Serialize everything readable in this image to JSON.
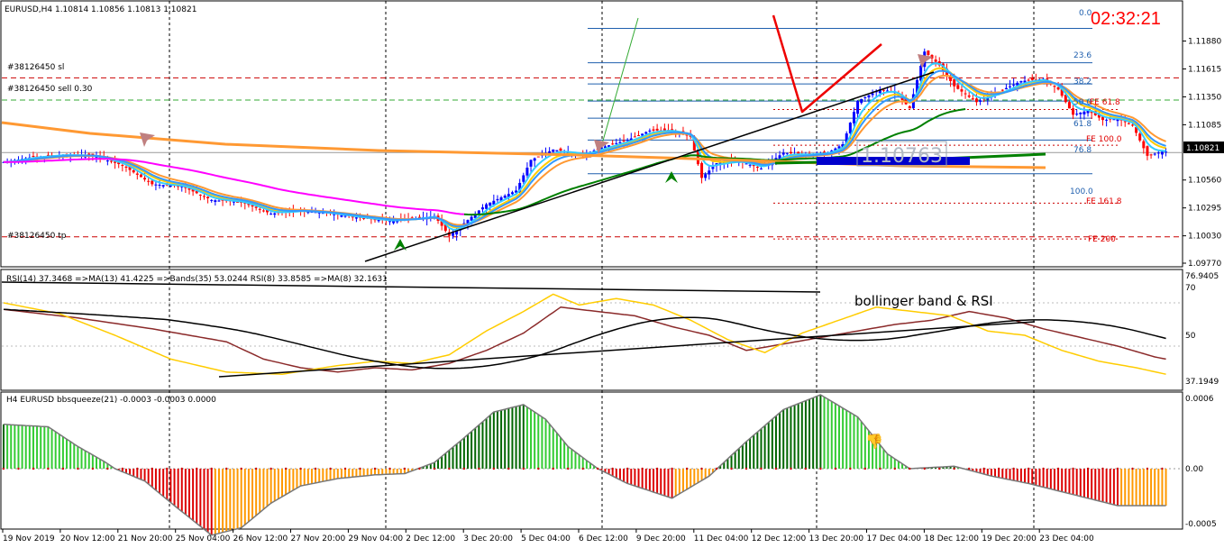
{
  "window": {
    "symbol_header": "EURUSD,H4  1.10814 1.10856 1.10813 1.10821",
    "countdown": "02:32:21",
    "current_price": "1.10821",
    "price_box": "1.10763"
  },
  "order_lines": {
    "sl": "#38126450 sl",
    "sell": "#38126450 sell 0.30",
    "tp": "#38126450 tp"
  },
  "fib_labels": [
    "0.0",
    "23.6",
    "38.2",
    "50.0",
    "61.8",
    "76.8",
    "100.0"
  ],
  "fe_labels": [
    "FE 61.8",
    "FE 100.0",
    "FE 161.8",
    "FE  200"
  ],
  "rsi_panel": {
    "header": "RSI(14) 37.3468  =>MA(13) 41.4225  =>Bands(35) 53.0244  RSI(8) 33.8585  =>MA(8) 32.1631",
    "annotation": "bollinger band & RSI"
  },
  "squeeze_panel": {
    "header": "H4 EURUSD bbsqueeze(21) -0.0003 -0.0003 0.0000"
  },
  "colors": {
    "bull_candle": "#0000ff",
    "bear_candle": "#ff0000",
    "ma_magenta": "#ff00ff",
    "ma_orange": "#ff9933",
    "ma_yellow": "#ffcc00",
    "ma_lightblue": "#33ccff",
    "ma_blue": "#3399ff",
    "ma_green": "#008000",
    "trendline": "#000000",
    "hist_up": "#33cc33",
    "hist_down": "#dd0000",
    "hist_weak_down": "#ff9900",
    "fib_line": "#1f5fae",
    "fe_line": "#cc0000",
    "order_sl": "#cc0000",
    "order_sell": "#33aa33",
    "countdown": "#ff0000"
  },
  "chart_data": [
    {
      "type": "candlestick",
      "title": "EURUSD,H4",
      "ylabel": "",
      "ylim": [
        1.0977,
        1.1215
      ],
      "y_ticks": [
        "1.11880",
        "1.11615",
        "1.11350",
        "1.11085",
        "1.10821",
        "1.10560",
        "1.10295",
        "1.10030",
        "1.09770"
      ],
      "x_ticks": [
        "19 Nov 2019",
        "20 Nov 12:00",
        "21 Nov 20:00",
        "25 Nov 04:00",
        "26 Nov 12:00",
        "27 Nov 20:00",
        "29 Nov 04:00",
        "2 Dec 12:00",
        "3 Dec 20:00",
        "5 Dec 04:00",
        "6 Dec 12:00",
        "9 Dec 20:00",
        "11 Dec 04:00",
        "12 Dec 12:00",
        "13 Dec 20:00",
        "17 Dec 04:00",
        "18 Dec 12:00",
        "19 Dec 20:00",
        "23 Dec 04:00"
      ],
      "close_anchors": [
        [
          0,
          1.1073
        ],
        [
          8,
          1.1078
        ],
        [
          16,
          1.108
        ],
        [
          24,
          1.1079
        ],
        [
          32,
          1.107
        ],
        [
          40,
          1.1052
        ],
        [
          48,
          1.105
        ],
        [
          56,
          1.1037
        ],
        [
          64,
          1.1035
        ],
        [
          72,
          1.1024
        ],
        [
          80,
          1.1027
        ],
        [
          88,
          1.1024
        ],
        [
          96,
          1.102
        ],
        [
          104,
          1.1017
        ],
        [
          112,
          1.102
        ],
        [
          116,
          1.1022
        ],
        [
          120,
          1.1003
        ],
        [
          124,
          1.1015
        ],
        [
          130,
          1.1033
        ],
        [
          138,
          1.1046
        ],
        [
          142,
          1.1075
        ],
        [
          148,
          1.1085
        ],
        [
          156,
          1.108
        ],
        [
          162,
          1.1088
        ],
        [
          168,
          1.1094
        ],
        [
          174,
          1.1103
        ],
        [
          180,
          1.1103
        ],
        [
          185,
          1.1097
        ],
        [
          188,
          1.1058
        ],
        [
          192,
          1.1072
        ],
        [
          198,
          1.1074
        ],
        [
          204,
          1.1067
        ],
        [
          210,
          1.1082
        ],
        [
          216,
          1.108
        ],
        [
          222,
          1.1082
        ],
        [
          226,
          1.109
        ],
        [
          230,
          1.1131
        ],
        [
          236,
          1.1142
        ],
        [
          240,
          1.114
        ],
        [
          244,
          1.1124
        ],
        [
          248,
          1.1178
        ],
        [
          252,
          1.1165
        ],
        [
          256,
          1.1145
        ],
        [
          262,
          1.113
        ],
        [
          268,
          1.114
        ],
        [
          274,
          1.115
        ],
        [
          280,
          1.1152
        ],
        [
          284,
          1.1142
        ],
        [
          288,
          1.1118
        ],
        [
          292,
          1.1122
        ],
        [
          296,
          1.1113
        ],
        [
          300,
          1.1114
        ],
        [
          304,
          1.1108
        ],
        [
          308,
          1.1079
        ],
        [
          312,
          1.1083
        ]
      ],
      "fibonacci_levels": [
        0.0,
        23.6,
        38.2,
        50.0,
        61.8,
        76.8,
        100.0
      ],
      "fib_high": 1.12,
      "fib_low": 1.1062,
      "fe_levels": [
        {
          "label": "FE 61.8",
          "value": 1.1123
        },
        {
          "label": "FE 100.0",
          "value": 1.1089
        },
        {
          "label": "FE 161.8",
          "value": 1.1034
        },
        {
          "label": "FE  200",
          "value": 1.1
        }
      ],
      "order_levels": {
        "sl": 1.1153,
        "sell": 1.1132,
        "tp": 1.1002
      },
      "current_price": 1.10821
    },
    {
      "type": "line",
      "title": "RSI(14) 37.3468",
      "ylim": [
        30,
        80
      ],
      "y_ticks": [
        "76.9405",
        "70",
        "50",
        "37.1949"
      ],
      "series": [
        {
          "name": "RSI(14)",
          "anchors": [
            [
              0,
              67
            ],
            [
              20,
              63
            ],
            [
              40,
              58
            ],
            [
              60,
              52
            ],
            [
              70,
              44
            ],
            [
              80,
              40
            ],
            [
              90,
              38
            ],
            [
              100,
              40
            ],
            [
              110,
              39
            ],
            [
              120,
              42
            ],
            [
              130,
              48
            ],
            [
              140,
              56
            ],
            [
              150,
              68
            ],
            [
              160,
              66
            ],
            [
              170,
              64
            ],
            [
              180,
              59
            ],
            [
              190,
              55
            ],
            [
              200,
              48
            ],
            [
              210,
              51
            ],
            [
              220,
              54
            ],
            [
              230,
              57
            ],
            [
              240,
              60
            ],
            [
              250,
              62
            ],
            [
              260,
              66
            ],
            [
              270,
              63
            ],
            [
              280,
              58
            ],
            [
              290,
              54
            ],
            [
              300,
              50
            ],
            [
              310,
              45
            ],
            [
              313,
              44
            ]
          ]
        },
        {
          "name": "RSI(8)",
          "anchors": [
            [
              0,
              70
            ],
            [
              15,
              65
            ],
            [
              30,
              55
            ],
            [
              45,
              44
            ],
            [
              60,
              38
            ],
            [
              75,
              37
            ],
            [
              90,
              41
            ],
            [
              100,
              43
            ],
            [
              110,
              42
            ],
            [
              120,
              46
            ],
            [
              130,
              57
            ],
            [
              140,
              66
            ],
            [
              148,
              74
            ],
            [
              155,
              69
            ],
            [
              165,
              72
            ],
            [
              175,
              69
            ],
            [
              185,
              62
            ],
            [
              195,
              53
            ],
            [
              205,
              47
            ],
            [
              215,
              56
            ],
            [
              225,
              62
            ],
            [
              235,
              68
            ],
            [
              245,
              66
            ],
            [
              255,
              64
            ],
            [
              265,
              57
            ],
            [
              275,
              55
            ],
            [
              285,
              48
            ],
            [
              295,
              43
            ],
            [
              305,
              40
            ],
            [
              313,
              37
            ]
          ]
        }
      ]
    },
    {
      "type": "bar",
      "title": "bbsqueeze(21)",
      "ylim": [
        -0.0006,
        0.0006
      ],
      "y_ticks": [
        "0.0006",
        "0.00",
        "-0.0005"
      ],
      "anchors": [
        [
          0,
          0.00036
        ],
        [
          12,
          0.00034
        ],
        [
          20,
          0.00018
        ],
        [
          27,
          6e-05
        ],
        [
          30,
          0.0
        ],
        [
          38,
          -0.0001
        ],
        [
          46,
          -0.0003
        ],
        [
          56,
          -0.00054
        ],
        [
          64,
          -0.00048
        ],
        [
          72,
          -0.00028
        ],
        [
          80,
          -0.00014
        ],
        [
          90,
          -8e-05
        ],
        [
          100,
          -5e-05
        ],
        [
          108,
          -4e-05
        ],
        [
          116,
          5e-05
        ],
        [
          124,
          0.00025
        ],
        [
          132,
          0.00046
        ],
        [
          140,
          0.00052
        ],
        [
          146,
          0.0004
        ],
        [
          152,
          0.00018
        ],
        [
          160,
          0.0
        ],
        [
          168,
          -0.00012
        ],
        [
          180,
          -0.00024
        ],
        [
          190,
          -6e-05
        ],
        [
          200,
          0.00022
        ],
        [
          210,
          0.00048
        ],
        [
          220,
          0.0006
        ],
        [
          230,
          0.00042
        ],
        [
          238,
          0.00012
        ],
        [
          244,
          0.0
        ],
        [
          256,
          2e-05
        ],
        [
          266,
          -6e-05
        ],
        [
          276,
          -0.00012
        ],
        [
          284,
          -0.00018
        ],
        [
          300,
          -0.0003
        ],
        [
          313,
          -0.0003
        ]
      ]
    }
  ]
}
